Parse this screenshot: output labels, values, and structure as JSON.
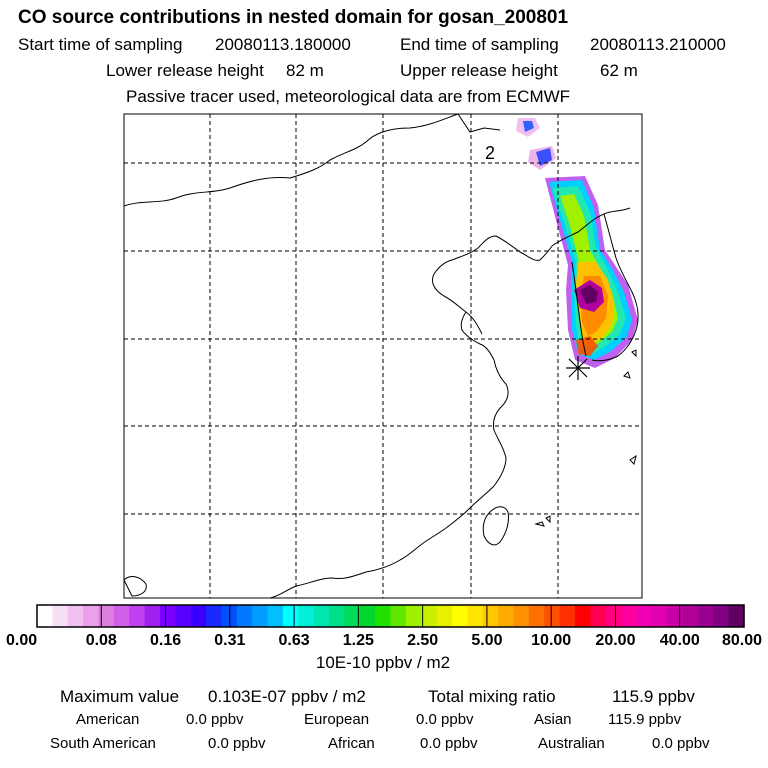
{
  "header": {
    "title": "CO  source contributions in nested domain for gosan_200801",
    "start_label": "Start time of sampling",
    "start_value": "20080113.180000",
    "end_label": "End time of sampling",
    "end_value": "20080113.210000",
    "lower_label": "Lower release height",
    "lower_value": "82 m",
    "upper_label": "Upper release height",
    "upper_value": "62 m",
    "tracer_note": "Passive tracer used, meteorological data are from ECMWF"
  },
  "map": {
    "page_number": "2",
    "receptor_marker": "asterisk-icon"
  },
  "chart_data": {
    "type": "heatmap",
    "title": "CO  source contributions in nested domain for gosan_200801",
    "colorbar": {
      "tick_labels": [
        "0.00",
        "0.08",
        "0.16",
        "0.31",
        "0.63",
        "1.25",
        "2.50",
        "5.00",
        "10.00",
        "20.00",
        "40.00",
        "80.00"
      ],
      "unit_label": "10E-10 ppbv / m2",
      "colors": [
        "#ffffff",
        "#f6e0f6",
        "#f0c0f0",
        "#eaa0ea",
        "#de80de",
        "#d060e8",
        "#bf40f0",
        "#a020f0",
        "#7a00ff",
        "#5a00ff",
        "#3a00ff",
        "#1a2aff",
        "#0050ff",
        "#0078ff",
        "#009cff",
        "#00c0ff",
        "#00ffff",
        "#00f0d8",
        "#00e8b0",
        "#00e088",
        "#00dc58",
        "#00d82c",
        "#20e000",
        "#60e800",
        "#9ef000",
        "#c8f000",
        "#e6f000",
        "#ffff00",
        "#ffe400",
        "#ffc800",
        "#ffac00",
        "#ff9000",
        "#ff7000",
        "#ff5000",
        "#ff3000",
        "#ff0000",
        "#ff0050",
        "#ff0080",
        "#ff00a0",
        "#f000b0",
        "#e000b0",
        "#c800a8",
        "#b00098",
        "#980090",
        "#800080",
        "#600060"
      ]
    },
    "series": [
      {
        "name": "plume",
        "description_values": {
          "max_ppbv_per_m2": "0.103E-07"
        }
      }
    ]
  },
  "stats": {
    "max_label": "Maximum value",
    "max_value": "0.103E-07 ppbv / m2",
    "total_label": "Total mixing ratio",
    "total_value": "115.9 ppbv",
    "american_label": "American",
    "american_value": "0.0 ppbv",
    "european_label": "European",
    "european_value": "0.0 ppbv",
    "asian_label": "Asian",
    "asian_value": "115.9 ppbv",
    "south_american_label": "South American",
    "south_american_value": "0.0 ppbv",
    "african_label": "African",
    "african_value": "0.0 ppbv",
    "australian_label": "Australian",
    "australian_value": "0.0 ppbv"
  }
}
